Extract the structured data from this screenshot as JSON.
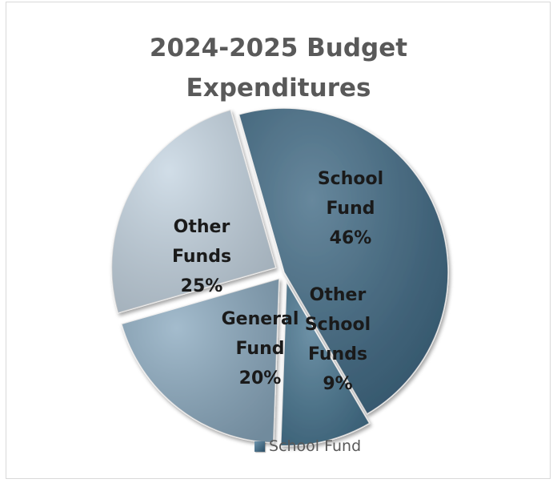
{
  "chart_data": {
    "type": "pie",
    "title_lines": [
      "2024-2025  Budget",
      "Expenditures"
    ],
    "slices": [
      {
        "name": "School Fund",
        "value": 46,
        "percent_label": "46%",
        "label_lines": [
          "School",
          "Fund",
          "46%"
        ],
        "color": "#3c6681"
      },
      {
        "name": "Other School Funds",
        "value": 9,
        "percent_label": "9%",
        "label_lines": [
          "Other",
          "School",
          "Funds",
          "9%"
        ],
        "color": "#45738e"
      },
      {
        "name": "General Fund",
        "value": 20,
        "percent_label": "20%",
        "label_lines": [
          "General",
          "Fund",
          "20%"
        ],
        "color": "#8aa9bf"
      },
      {
        "name": "Other Funds",
        "value": 25,
        "percent_label": "25%",
        "label_lines": [
          "Other",
          "Funds",
          "25%"
        ],
        "color": "#c4d4e1"
      }
    ],
    "legend": {
      "position": "bottom",
      "entries": [
        "School Fund"
      ]
    }
  }
}
